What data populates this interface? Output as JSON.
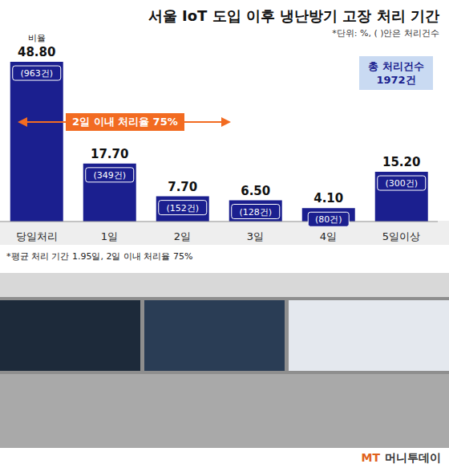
{
  "chart_data": {
    "type": "bar",
    "title": "서울 IoT 도입 이후 냉난방기 고장 처리 기간",
    "subtitle": "*단위: %, ( )안은 처리건수",
    "value_name": "비율",
    "categories": [
      "당일처리",
      "1일",
      "2일",
      "3일",
      "4일",
      "5일이상"
    ],
    "values": [
      48.8,
      17.7,
      7.7,
      6.5,
      4.1,
      15.2
    ],
    "value_labels": [
      "48.80",
      "17.70",
      "7.70",
      "6.50",
      "4.10",
      "15.20"
    ],
    "counts": [
      963,
      349,
      152,
      128,
      80,
      300
    ],
    "count_labels": [
      "(963건)",
      "(349건)",
      "(152건)",
      "(128건)",
      "(80건)",
      "(300건)"
    ],
    "color": "#1b1f8f",
    "ylim": [
      0,
      52
    ],
    "yticks": [],
    "grid": false,
    "data_labels": true,
    "tick_labels": "x",
    "annotation": "2일 이내 처리율 75%",
    "total_label": "총 처리건수",
    "total_value": "1972건",
    "footnote": "*평균 처리 기간 1.95일, 2일 이내 처리율 75%",
    "source": "머니투데이",
    "source_mark": "MT"
  }
}
